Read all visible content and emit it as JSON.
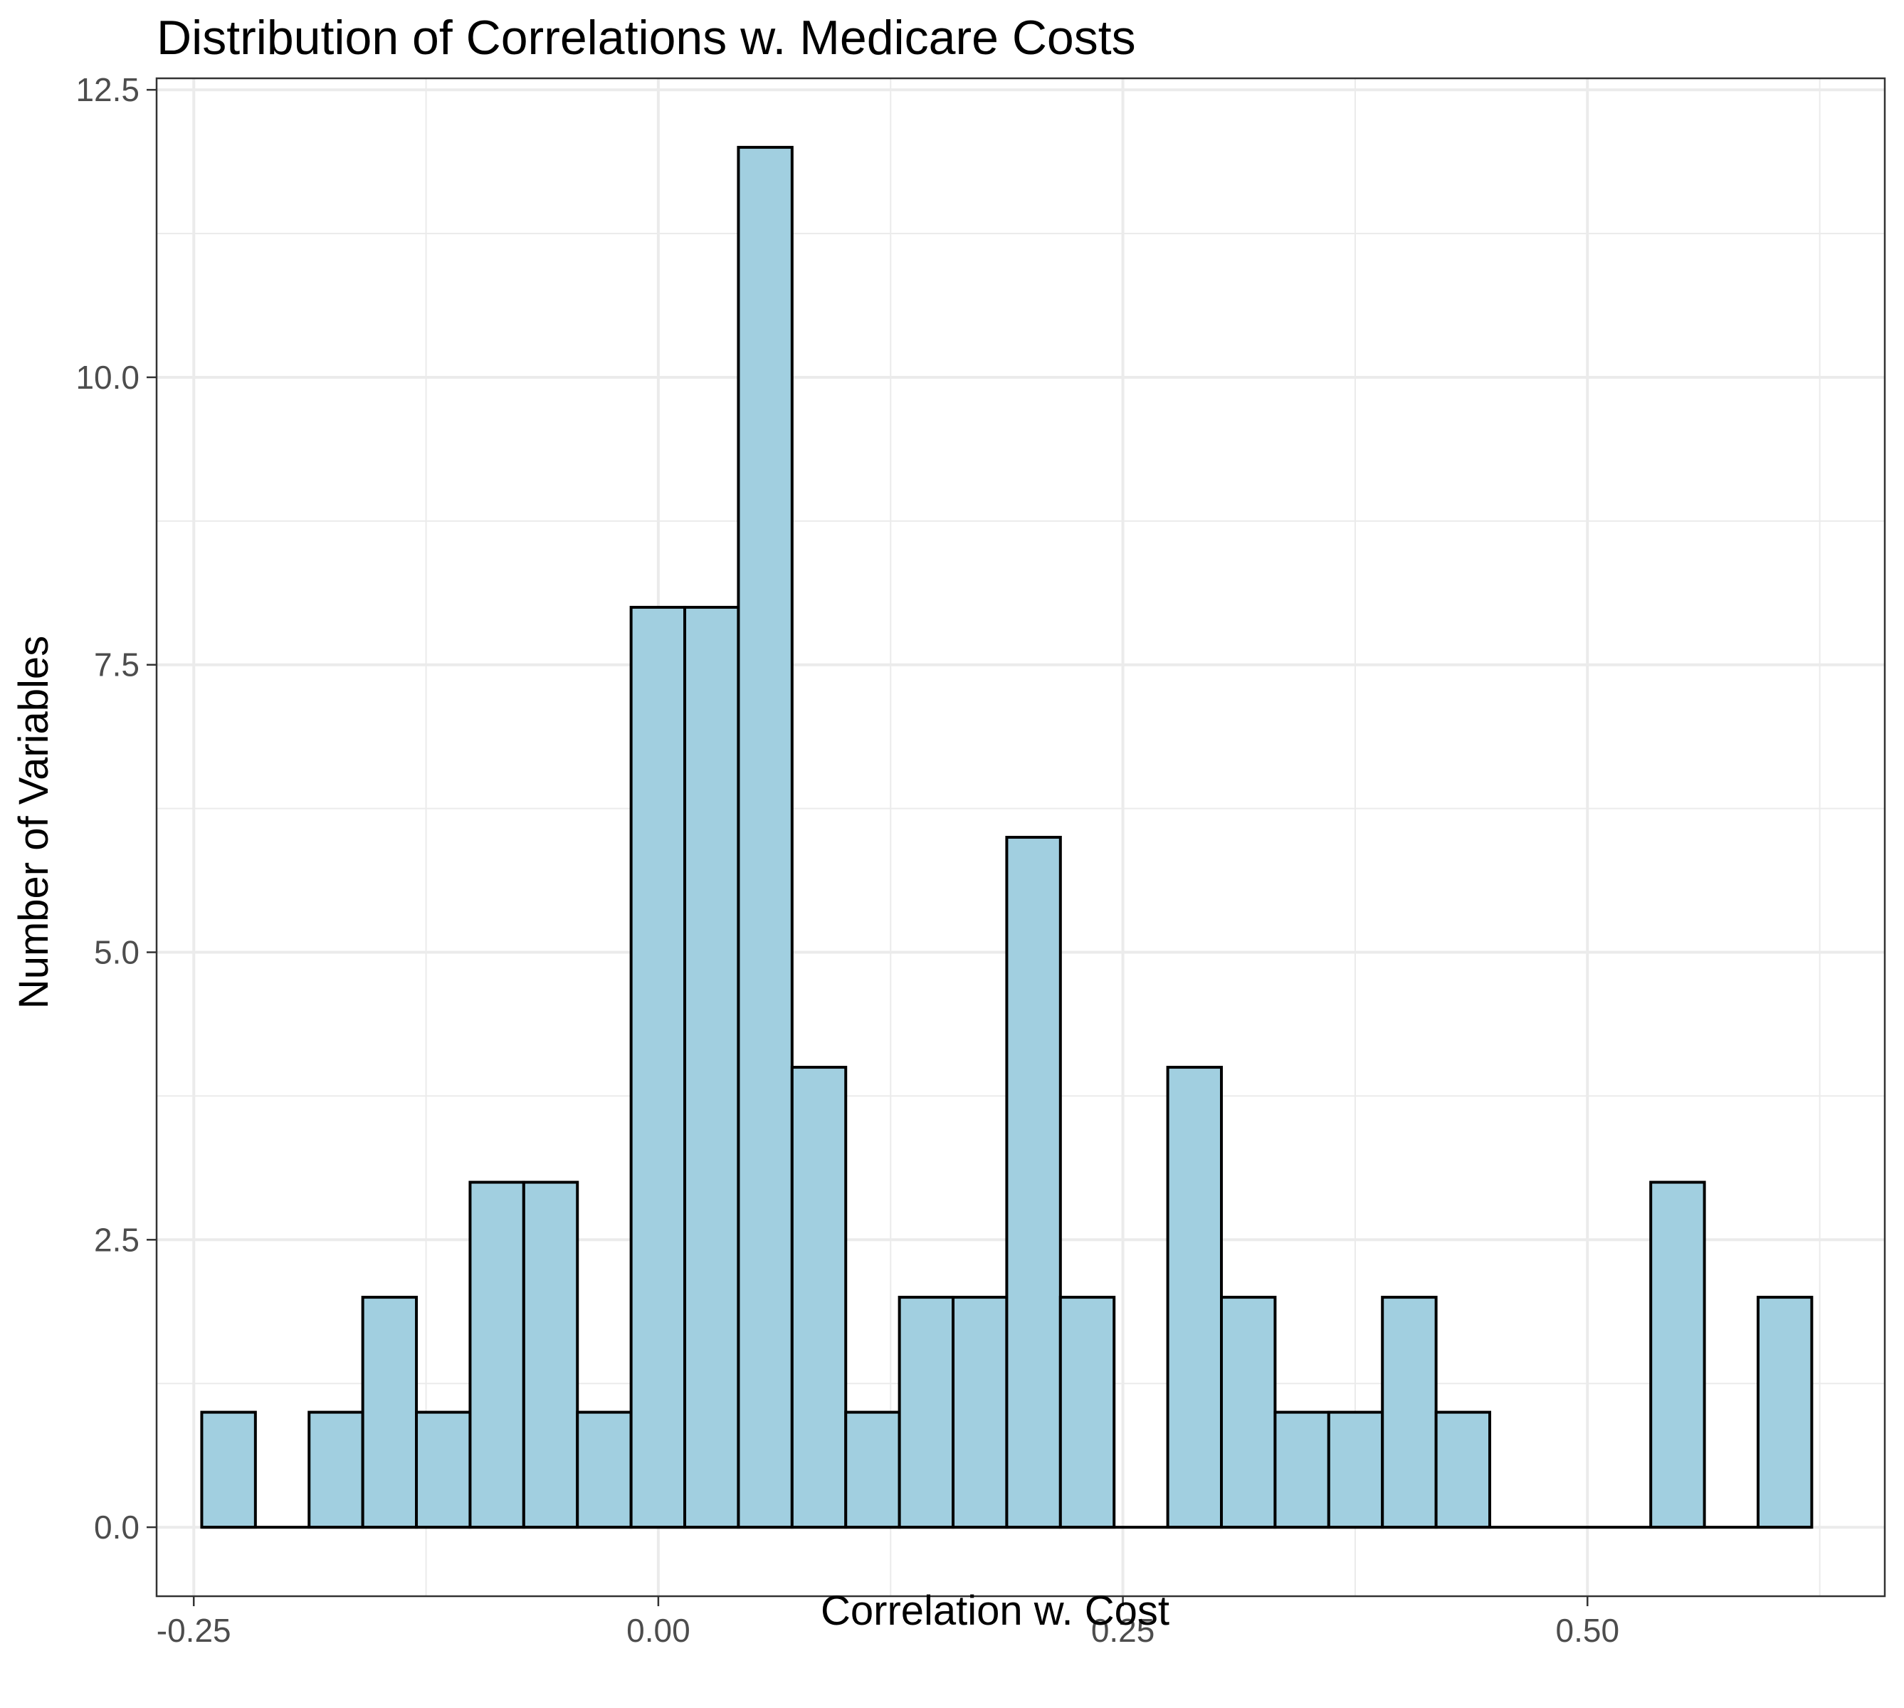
{
  "chart_data": {
    "type": "bar",
    "title": "Distribution of Correlations w. Medicare Costs",
    "xlabel": "Correlation w. Cost",
    "ylabel": "Number of Variables",
    "xlim": [
      -0.27,
      0.66
    ],
    "ylim": [
      -0.6,
      12.6
    ],
    "x_ticks": [
      {
        "value": -0.25,
        "label": "-0.25"
      },
      {
        "value": 0.0,
        "label": "0.00"
      },
      {
        "value": 0.25,
        "label": "0.25"
      },
      {
        "value": 0.5,
        "label": "0.50"
      }
    ],
    "y_ticks": [
      {
        "value": 0.0,
        "label": "0.0"
      },
      {
        "value": 2.5,
        "label": "2.5"
      },
      {
        "value": 5.0,
        "label": "5.0"
      },
      {
        "value": 7.5,
        "label": "7.5"
      },
      {
        "value": 10.0,
        "label": "10.0"
      },
      {
        "value": 12.5,
        "label": "12.5"
      }
    ],
    "bins": {
      "start": -0.2457,
      "width": 0.02888,
      "counts": [
        1,
        0,
        1,
        2,
        1,
        3,
        3,
        1,
        8,
        8,
        12,
        4,
        1,
        2,
        2,
        6,
        2,
        0,
        4,
        2,
        1,
        1,
        2,
        1,
        0,
        0,
        0,
        3,
        0,
        2
      ]
    },
    "grid": true,
    "legend": "none",
    "colors": {
      "bar_fill": "#a1cfe0",
      "bar_outline": "#000000",
      "grid": "#ebebeb",
      "panel_border": "#333333",
      "tick_label": "#4d4d4d"
    }
  }
}
